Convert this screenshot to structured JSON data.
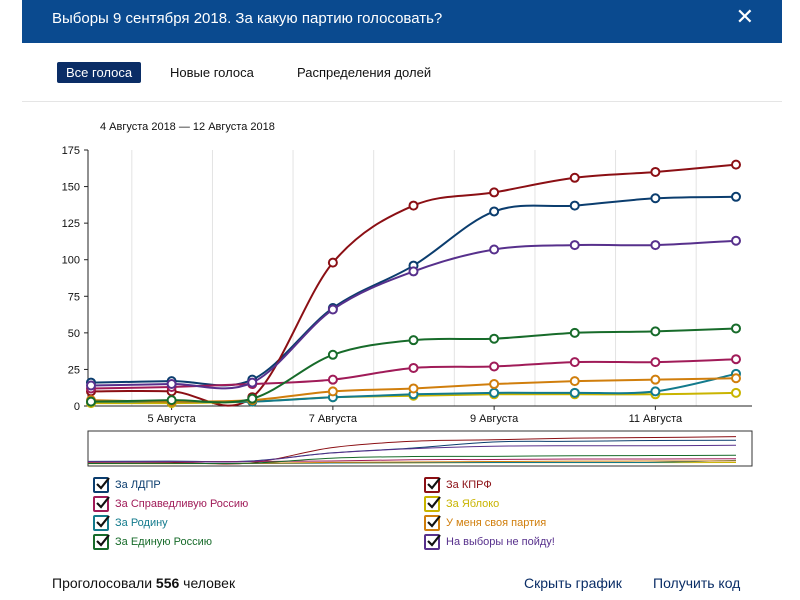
{
  "header": {
    "title": "Выборы 9 сентября 2018. За какую партию голосовать?",
    "close_icon": "close-icon"
  },
  "tabs": [
    {
      "label": "Все голоса",
      "active": true
    },
    {
      "label": "Новые голоса",
      "active": false
    },
    {
      "label": "Распределения долей",
      "active": false
    }
  ],
  "range_label": "4 Августа 2018 — 12 Августа 2018",
  "chart_data": {
    "type": "line",
    "x": [
      "2018-08-04",
      "2018-08-05",
      "2018-08-06",
      "2018-08-07",
      "2018-08-08",
      "2018-08-09",
      "2018-08-10",
      "2018-08-11",
      "2018-08-12"
    ],
    "x_tick_labels": [
      "5 Августа",
      "7 Августа",
      "9 Августа",
      "11 Августа"
    ],
    "y_ticks": [
      0,
      25,
      50,
      75,
      100,
      125,
      150,
      175
    ],
    "ylim": [
      0,
      175
    ],
    "grid": "x-only",
    "series": [
      {
        "name": "За ЛДПР",
        "color": "#0b3d6e",
        "values": [
          16,
          17,
          18,
          67,
          96,
          133,
          137,
          142,
          143
        ]
      },
      {
        "name": "За КПРФ",
        "color": "#8b0f14",
        "values": [
          10,
          10,
          6,
          98,
          137,
          146,
          156,
          160,
          165
        ]
      },
      {
        "name": "За Справедливую Россию",
        "color": "#a01b58",
        "values": [
          12,
          13,
          15,
          18,
          26,
          27,
          30,
          30,
          32
        ]
      },
      {
        "name": "За Яблоко",
        "color": "#c9b400",
        "values": [
          2,
          2,
          3,
          6,
          7,
          8,
          8,
          8,
          9
        ]
      },
      {
        "name": "За Родину",
        "color": "#127a8c",
        "values": [
          3,
          3,
          3,
          6,
          8,
          9,
          9,
          10,
          22
        ]
      },
      {
        "name": "У меня своя партия",
        "color": "#d07e0c",
        "values": [
          4,
          3,
          4,
          10,
          12,
          15,
          17,
          18,
          19
        ]
      },
      {
        "name": "За Единую Россию",
        "color": "#176b2a",
        "values": [
          3,
          4,
          5,
          35,
          45,
          46,
          50,
          51,
          53
        ]
      },
      {
        "name": "На выборы не пойду!",
        "color": "#57308c",
        "values": [
          14,
          15,
          16,
          66,
          92,
          107,
          110,
          110,
          113
        ]
      }
    ]
  },
  "footer": {
    "prefix": "Проголосовали",
    "count": "556",
    "suffix": "человек",
    "hide_chart": "Скрыть график",
    "get_code": "Получить код"
  }
}
